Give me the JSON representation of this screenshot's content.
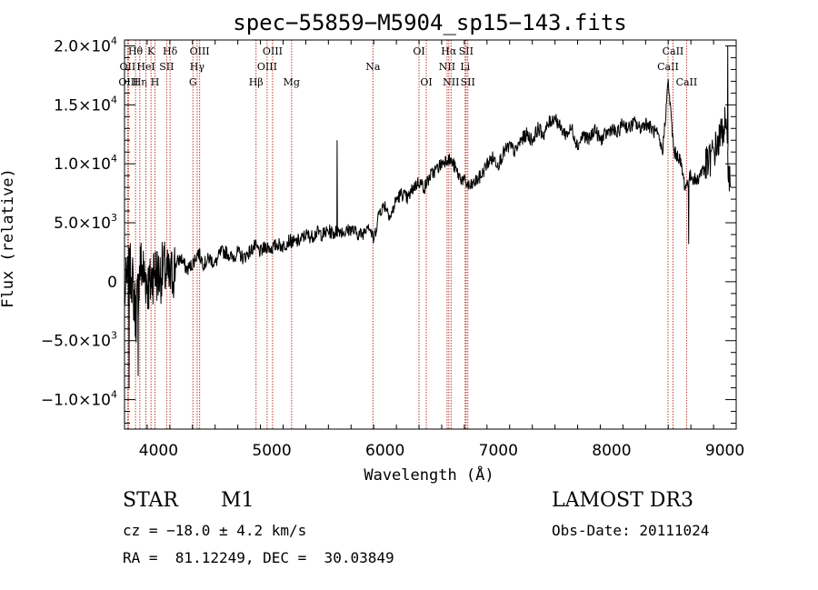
{
  "chart_data": {
    "type": "line",
    "title": "spec−55859−M5904_sp15−143.fits",
    "xlabel": "Wavelength (Å)",
    "ylabel": "Flux (relative)",
    "xlim": [
      3700,
      9100
    ],
    "ylim": [
      -12500,
      20500
    ],
    "x_ticks": [
      4000,
      5000,
      6000,
      7000,
      8000,
      9000
    ],
    "y_ticks": [
      {
        "value": 20000,
        "label": "2.0×10"
      },
      {
        "value": 15000,
        "label": "1.5×10"
      },
      {
        "value": 10000,
        "label": "1.0×10"
      },
      {
        "value": 5000,
        "label": "5.0×10"
      },
      {
        "value": 0,
        "label": "0"
      },
      {
        "value": -5000,
        "label": "−5.0×10"
      },
      {
        "value": -10000,
        "label": "−1.0×10"
      }
    ],
    "y_tick_exponents": {
      "20000": "4",
      "15000": "4",
      "10000": "4",
      "5000": "3",
      "-5000": "3",
      "-10000": "4"
    },
    "series": [
      {
        "x": [
          3700,
          3760,
          3800,
          3840,
          3880,
          3920,
          3960,
          4000,
          4050,
          4100,
          4150,
          4200,
          4250,
          4300,
          4350,
          4400,
          4450,
          4500,
          4550,
          4600,
          4650,
          4700,
          4750,
          4800,
          4850,
          4900,
          4950,
          5000,
          5050,
          5100,
          5150,
          5200,
          5250,
          5300,
          5350,
          5400,
          5450,
          5500,
          5550,
          5590,
          5650,
          5700,
          5750,
          5800,
          5850,
          5900,
          5950,
          6000,
          6050,
          6100,
          6150,
          6200,
          6250,
          6300,
          6350,
          6400,
          6450,
          6500,
          6550,
          6600,
          6650,
          6700,
          6750,
          6800,
          6850,
          6900,
          6950,
          7000,
          7050,
          7100,
          7150,
          7200,
          7250,
          7300,
          7350,
          7400,
          7450,
          7500,
          7550,
          7600,
          7650,
          7700,
          7750,
          7800,
          7850,
          7900,
          7950,
          8000,
          8050,
          8100,
          8150,
          8200,
          8250,
          8300,
          8350,
          8400,
          8450,
          8500,
          8550,
          8600,
          8650,
          8700,
          8750,
          8800,
          8850,
          8900,
          8950,
          9000,
          9050
        ],
        "y": [
          -1000,
          1000,
          -3000,
          1500,
          500,
          -500,
          1000,
          500,
          1000,
          0,
          1500,
          2000,
          1000,
          1500,
          2500,
          1500,
          2000,
          1500,
          2500,
          2500,
          2000,
          2500,
          2000,
          2500,
          3000,
          2500,
          3000,
          2800,
          3200,
          3000,
          3500,
          3300,
          3500,
          4000,
          3800,
          4200,
          4000,
          4300,
          4100,
          4400,
          4200,
          4500,
          4100,
          4000,
          5000,
          3500,
          6000,
          6500,
          5500,
          7000,
          7500,
          7000,
          8000,
          8500,
          8000,
          9000,
          9500,
          10000,
          10500,
          10000,
          9000,
          8500,
          8000,
          8500,
          9000,
          10000,
          10500,
          10000,
          11000,
          11500,
          11000,
          12000,
          12500,
          12000,
          13000,
          12500,
          13500,
          14000,
          13000,
          12500,
          13000,
          11500,
          12500,
          12000,
          13000,
          12000,
          12500,
          13000,
          12500,
          13500,
          13000,
          13500,
          13000,
          13500,
          13000,
          12500,
          11000,
          17000,
          11000,
          10500,
          8000,
          9000,
          8500,
          9500,
          10000,
          11000,
          12000,
          13500,
          8000
        ]
      }
    ],
    "spikes": [
      {
        "x": 5577,
        "y": 12000
      },
      {
        "x": 9025,
        "y": 20000
      },
      {
        "x": 8680,
        "y": 3200
      },
      {
        "x": 3820,
        "y": -8000
      },
      {
        "x": 3740,
        "y": -9000
      }
    ],
    "line_markers": [
      {
        "x": 3797,
        "label": "Hθ",
        "row": 0
      },
      {
        "x": 3727,
        "label": "OII",
        "row": 1
      },
      {
        "x": 3735,
        "label": "OIII",
        "row": 2
      },
      {
        "x": 3835,
        "label": "Hη",
        "row": 2
      },
      {
        "x": 3889,
        "label": "HeI",
        "row": 1
      },
      {
        "x": 3934,
        "label": "K",
        "row": 0
      },
      {
        "x": 3969,
        "label": "H",
        "row": 2
      },
      {
        "x": 4072,
        "label": "SII",
        "row": 1
      },
      {
        "x": 4102,
        "label": "Hδ",
        "row": 0
      },
      {
        "x": 4304,
        "label": "G",
        "row": 2
      },
      {
        "x": 4341,
        "label": "Hγ",
        "row": 1
      },
      {
        "x": 4363,
        "label": "OIII",
        "row": 0
      },
      {
        "x": 4861,
        "label": "Hβ",
        "row": 2
      },
      {
        "x": 4959,
        "label": "OIII",
        "row": 1
      },
      {
        "x": 5007,
        "label": "OIII",
        "row": 0
      },
      {
        "x": 5175,
        "label": "Mg",
        "row": 2
      },
      {
        "x": 5893,
        "label": "Na",
        "row": 1
      },
      {
        "x": 6300,
        "label": "OI",
        "row": 0
      },
      {
        "x": 6364,
        "label": "OI",
        "row": 2
      },
      {
        "x": 6548,
        "label": "NII",
        "row": 1
      },
      {
        "x": 6563,
        "label": "Hα",
        "row": 0
      },
      {
        "x": 6583,
        "label": "NII",
        "row": 2
      },
      {
        "x": 6707,
        "label": "Li",
        "row": 1
      },
      {
        "x": 6716,
        "label": "SII",
        "row": 0
      },
      {
        "x": 6731,
        "label": "SII",
        "row": 2
      },
      {
        "x": 8498,
        "label": "CaII",
        "row": 1
      },
      {
        "x": 8542,
        "label": "CaII",
        "row": 0
      },
      {
        "x": 8662,
        "label": "CaII",
        "row": 2
      }
    ]
  },
  "info": {
    "object_class": "STAR",
    "subclass": "M1",
    "survey": "LAMOST DR3",
    "cz": "cz = −18.0 ± 4.2 km/s",
    "obs_date": "Obs-Date: 20111024",
    "coords": "RA =  81.12249, DEC =  30.03849"
  },
  "colors": {
    "marker": "#c0392b",
    "spectrum": "#000000",
    "axis": "#000000"
  }
}
